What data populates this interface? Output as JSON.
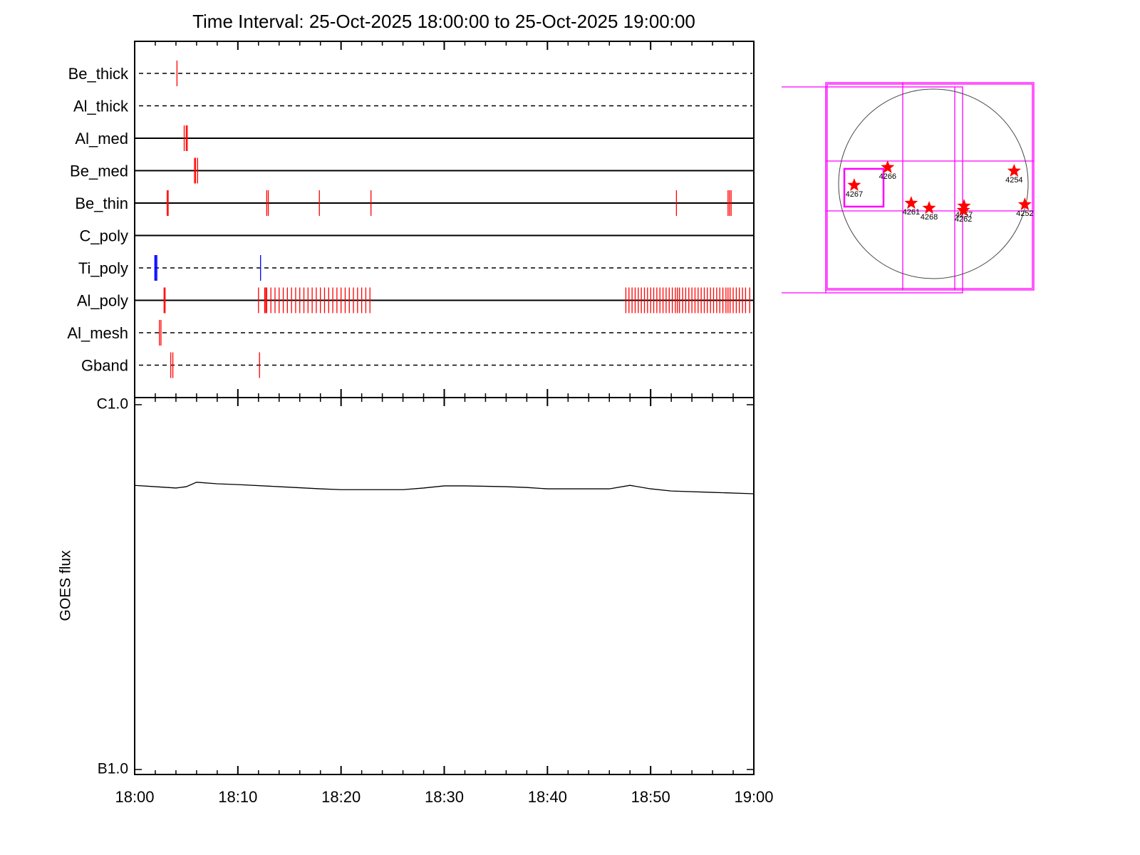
{
  "chart_data": [
    {
      "type": "timeline",
      "title": "Time Interval: 25-Oct-2025 18:00:00 to 25-Oct-2025 19:00:00",
      "series": [
        {
          "name": "Be_thick",
          "style": "dashed",
          "color": "#ff0000",
          "values": [
            4.1
          ]
        },
        {
          "name": "Al_thick",
          "style": "dashed",
          "color": "#ff0000",
          "values": []
        },
        {
          "name": "Al_med",
          "style": "solid",
          "color": "#ff0000",
          "values": [
            4.8,
            5.0,
            5.1
          ]
        },
        {
          "name": "Be_med",
          "style": "solid",
          "color": "#ff0000",
          "values": [
            5.8,
            5.9,
            6.1
          ]
        },
        {
          "name": "Be_thin",
          "style": "solid",
          "color": "#ff0000",
          "values": [
            3.15,
            3.25,
            12.8,
            12.95,
            17.9,
            22.9,
            52.5,
            57.5,
            57.65,
            57.8
          ]
        },
        {
          "name": "C_poly",
          "style": "solid",
          "color": "#ff0000",
          "values": []
        },
        {
          "name": "Ti_poly",
          "style": "dashed",
          "color": "#0000ff",
          "values": [
            1.95,
            2.05,
            2.15,
            12.2
          ]
        },
        {
          "name": "Al_poly",
          "style": "solid",
          "color": "#ff0000",
          "values": [
            2.85,
            2.95,
            12.0,
            12.6,
            12.7,
            12.8,
            13.2,
            13.6,
            14.0,
            14.4,
            14.8,
            15.2,
            15.6,
            16.0,
            16.4,
            16.8,
            17.2,
            17.6,
            18.0,
            18.4,
            18.8,
            19.2,
            19.6,
            20.0,
            20.4,
            20.8,
            21.2,
            21.6,
            22.0,
            22.4,
            22.8,
            47.6,
            47.9,
            48.2,
            48.5,
            48.8,
            49.1,
            49.4,
            49.7,
            50.0,
            50.3,
            50.6,
            50.9,
            51.2,
            51.5,
            51.8,
            52.1,
            52.4,
            52.6,
            52.8,
            53.1,
            53.4,
            53.7,
            54.0,
            54.3,
            54.6,
            54.9,
            55.2,
            55.5,
            55.8,
            56.1,
            56.4,
            56.7,
            57.0,
            57.3,
            57.5,
            57.7,
            58.0,
            58.3,
            58.6,
            58.9,
            59.2,
            59.6
          ]
        },
        {
          "name": "Al_mesh",
          "style": "dashed",
          "color": "#ff0000",
          "values": [
            2.4,
            2.55
          ]
        },
        {
          "name": "Gband",
          "style": "dashed",
          "color": "#ff0000",
          "values": [
            3.5,
            3.7,
            12.1
          ]
        }
      ]
    },
    {
      "type": "line",
      "y_label": "GOES flux",
      "log_scale": true,
      "color": "#000000",
      "x": [
        0,
        2,
        4,
        5,
        6,
        8,
        10,
        14,
        18,
        20,
        24,
        26,
        28,
        30,
        32,
        36,
        38,
        40,
        44,
        46,
        48,
        50,
        52,
        56,
        60
      ],
      "values": [
        6.01e-07,
        5.96e-07,
        5.91e-07,
        5.96e-07,
        6.13e-07,
        6.07e-07,
        6.04e-07,
        5.96e-07,
        5.88e-07,
        5.85e-07,
        5.85e-07,
        5.85e-07,
        5.91e-07,
        5.99e-07,
        5.99e-07,
        5.96e-07,
        5.93e-07,
        5.88e-07,
        5.88e-07,
        5.88e-07,
        6.01e-07,
        5.88e-07,
        5.8e-07,
        5.75e-07,
        5.7e-07
      ],
      "xlim": [
        0,
        60
      ],
      "xticks": [
        {
          "value": 0,
          "label": "18:00"
        },
        {
          "value": 10,
          "label": "18:10"
        },
        {
          "value": 20,
          "label": "18:20"
        },
        {
          "value": 30,
          "label": "18:30"
        },
        {
          "value": 40,
          "label": "18:40"
        },
        {
          "value": 50,
          "label": "18:50"
        },
        {
          "value": 60,
          "label": "19:00"
        }
      ],
      "ylim": [
        1e-07,
        1e-06
      ],
      "yticks": [
        {
          "value": 1e-07,
          "label": "B1.0"
        },
        {
          "value": 1e-06,
          "label": "C1.0"
        }
      ]
    },
    {
      "type": "scatter",
      "color": "#ff0000",
      "categories": [
        "4267",
        "4266",
        "4261",
        "4268",
        "4257",
        "4262",
        "4254",
        "4252"
      ],
      "x": [
        -800,
        -462,
        -224,
        -43,
        310,
        303,
        816,
        924
      ],
      "values": [
        -14,
        166,
        -195,
        -245,
        -224,
        -267,
        130,
        -209
      ]
    }
  ]
}
